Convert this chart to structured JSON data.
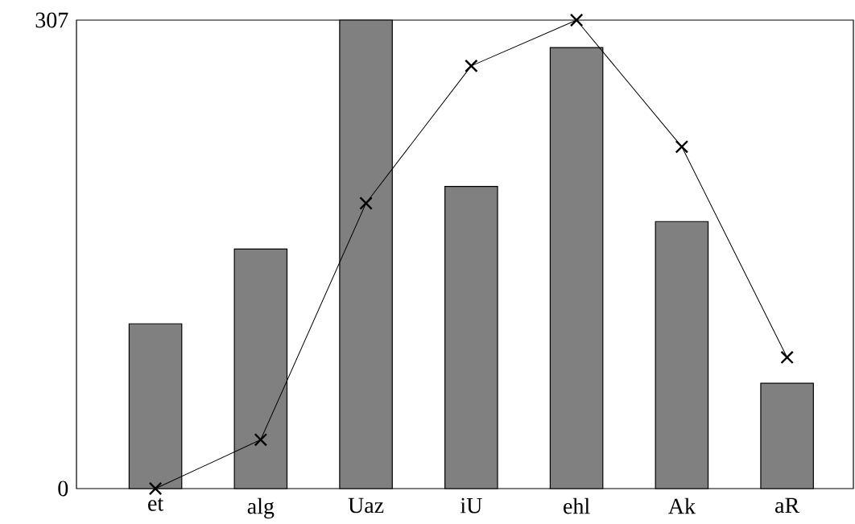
{
  "chart_data": {
    "type": "bar",
    "categories": [
      "et",
      "alg",
      "Uaz",
      "iU",
      "ehl",
      "Ak",
      "aR"
    ],
    "series": [
      {
        "color": "#808080",
        "values": [
          108,
          157,
          307,
          198,
          289,
          175,
          69
        ]
      },
      {
        "type": "line",
        "color": "#000000",
        "marker": "cross",
        "values": [
          0,
          32,
          187,
          277,
          307,
          224,
          86
        ]
      }
    ],
    "ylim": [
      0,
      307
    ],
    "yticks": [
      0,
      307
    ]
  }
}
